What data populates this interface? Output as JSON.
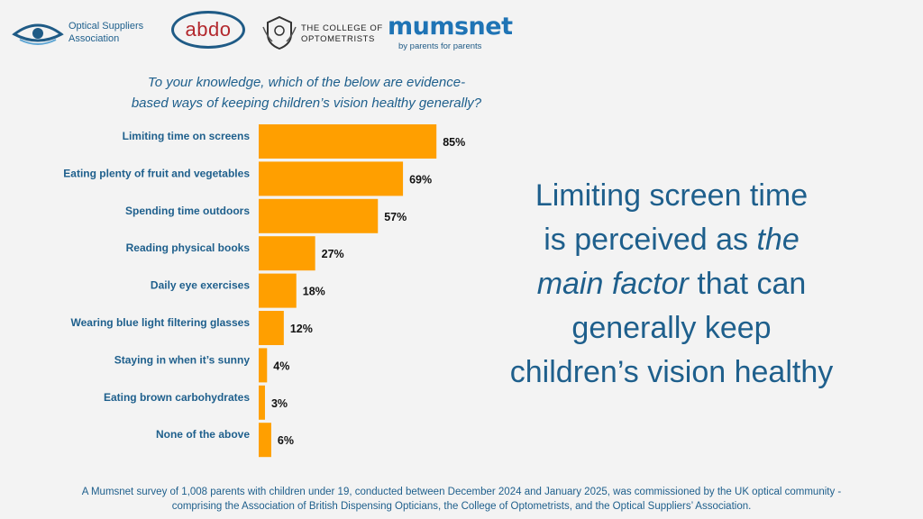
{
  "logos": {
    "osa_line1": "Optical Suppliers",
    "osa_line2": "Association",
    "abdo": "abdo",
    "coo_line1": "THE COLLEGE OF",
    "coo_line2": "OPTOMETRISTS",
    "mumsnet_name": "mumsnet",
    "mumsnet_tag": "by parents for parents"
  },
  "question": {
    "line1": "To your knowledge, which of the below are evidence-",
    "line2": "based ways of keeping children’s vision healthy generally?"
  },
  "chart_data": {
    "type": "bar",
    "orientation": "horizontal",
    "categories": [
      "Limiting time on screens",
      "Eating plenty of fruit and vegetables",
      "Spending time outdoors",
      "Reading physical books",
      "Daily eye exercises",
      "Wearing blue light filtering glasses",
      "Staying in when it’s sunny",
      "Eating brown carbohydrates",
      "None of the above"
    ],
    "values": [
      85,
      69,
      57,
      27,
      18,
      12,
      4,
      3,
      6
    ],
    "value_labels": [
      "85%",
      "69%",
      "57%",
      "27%",
      "18%",
      "12%",
      "4%",
      "3%",
      "6%"
    ],
    "unit": "%",
    "xlim": [
      0,
      100
    ],
    "bar_color": "#ff9f00"
  },
  "headline": {
    "line1": "Limiting screen time",
    "line2a": "is perceived as ",
    "line2b": "the",
    "line3a": "main factor",
    "line3b": " that can",
    "line4": "generally keep",
    "line5": "children’s vision healthy"
  },
  "footnote": {
    "line1": "A Mumsnet survey of 1,008 parents with children under 19, conducted between December 2024 and January 2025, was commissioned by the UK optical community -",
    "line2": "comprising the Association of British Dispensing Opticians, the College of Optometrists, and the Optical Suppliers’ Association."
  },
  "colors": {
    "text_blue": "#1e5f8c",
    "bar_orange": "#ff9f00",
    "background": "#f3f3f3"
  }
}
